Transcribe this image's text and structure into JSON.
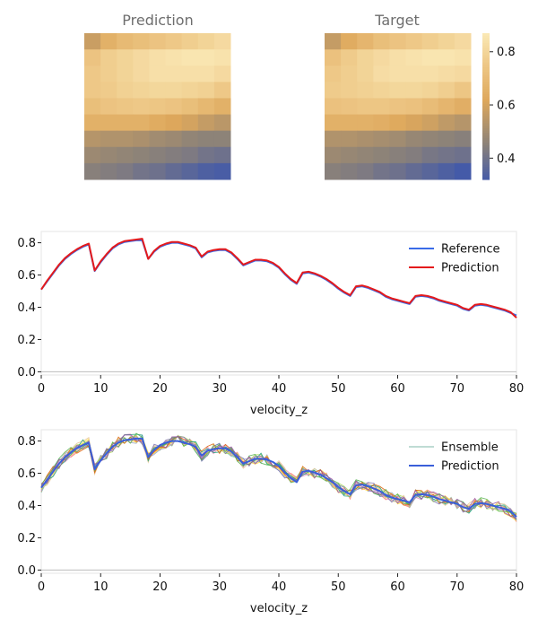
{
  "chart_data": [
    {
      "type": "heatmap",
      "title": "Prediction",
      "rows": 9,
      "cols": 9,
      "values": [
        [
          0.58,
          0.66,
          0.7,
          0.72,
          0.74,
          0.76,
          0.78,
          0.8,
          0.82
        ],
        [
          0.74,
          0.78,
          0.8,
          0.82,
          0.84,
          0.85,
          0.86,
          0.86,
          0.85
        ],
        [
          0.76,
          0.78,
          0.8,
          0.82,
          0.84,
          0.84,
          0.84,
          0.84,
          0.82
        ],
        [
          0.76,
          0.77,
          0.79,
          0.8,
          0.81,
          0.81,
          0.8,
          0.79,
          0.76
        ],
        [
          0.72,
          0.74,
          0.75,
          0.76,
          0.75,
          0.74,
          0.72,
          0.69,
          0.66
        ],
        [
          0.66,
          0.66,
          0.66,
          0.66,
          0.64,
          0.62,
          0.6,
          0.57,
          0.55
        ],
        [
          0.54,
          0.53,
          0.53,
          0.52,
          0.5,
          0.49,
          0.47,
          0.46,
          0.46
        ],
        [
          0.49,
          0.48,
          0.47,
          0.46,
          0.45,
          0.44,
          0.43,
          0.41,
          0.4
        ],
        [
          0.45,
          0.44,
          0.43,
          0.41,
          0.4,
          0.38,
          0.36,
          0.34,
          0.33
        ]
      ]
    },
    {
      "type": "heatmap",
      "title": "Target",
      "rows": 9,
      "cols": 9,
      "values": [
        [
          0.57,
          0.64,
          0.68,
          0.72,
          0.74,
          0.76,
          0.78,
          0.8,
          0.82
        ],
        [
          0.73,
          0.77,
          0.8,
          0.82,
          0.84,
          0.85,
          0.86,
          0.86,
          0.85
        ],
        [
          0.76,
          0.78,
          0.8,
          0.83,
          0.84,
          0.84,
          0.84,
          0.83,
          0.82
        ],
        [
          0.77,
          0.78,
          0.79,
          0.8,
          0.81,
          0.81,
          0.8,
          0.78,
          0.75
        ],
        [
          0.73,
          0.74,
          0.75,
          0.75,
          0.74,
          0.73,
          0.71,
          0.68,
          0.65
        ],
        [
          0.66,
          0.66,
          0.66,
          0.65,
          0.63,
          0.61,
          0.59,
          0.56,
          0.54
        ],
        [
          0.53,
          0.53,
          0.52,
          0.51,
          0.5,
          0.48,
          0.47,
          0.46,
          0.45
        ],
        [
          0.49,
          0.48,
          0.47,
          0.46,
          0.45,
          0.44,
          0.42,
          0.41,
          0.4
        ],
        [
          0.45,
          0.44,
          0.43,
          0.41,
          0.4,
          0.38,
          0.36,
          0.34,
          0.32
        ]
      ]
    },
    {
      "type": "colorbar",
      "range": [
        0.32,
        0.87
      ],
      "ticks": [
        "0.4",
        "0.6",
        "0.8"
      ],
      "tick_values": [
        0.4,
        0.6,
        0.8
      ]
    },
    {
      "type": "line",
      "xlabel": "",
      "xlim": [
        0,
        80
      ],
      "ylim": [
        -0.02,
        0.87
      ],
      "xticks": [
        0,
        10,
        20,
        30,
        40,
        50,
        60,
        70,
        80
      ],
      "yticks": [
        "0.0",
        "0.2",
        "0.4",
        "0.6",
        "0.8"
      ],
      "ytick_values": [
        0.0,
        0.2,
        0.4,
        0.6,
        0.8
      ],
      "legend_position": "top-right",
      "x": [
        0,
        1,
        2,
        3,
        4,
        5,
        6,
        7,
        8,
        9,
        10,
        11,
        12,
        13,
        14,
        15,
        16,
        17,
        18,
        19,
        20,
        21,
        22,
        23,
        24,
        25,
        26,
        27,
        28,
        29,
        30,
        31,
        32,
        33,
        34,
        35,
        36,
        37,
        38,
        39,
        40,
        41,
        42,
        43,
        44,
        45,
        46,
        47,
        48,
        49,
        50,
        51,
        52,
        53,
        54,
        55,
        56,
        57,
        58,
        59,
        60,
        61,
        62,
        63,
        64,
        65,
        66,
        67,
        68,
        69,
        70,
        71,
        72,
        73,
        74,
        75,
        76,
        77,
        78,
        79,
        80
      ],
      "series": [
        {
          "name": "Reference",
          "color": "#3a6be8",
          "width": 2,
          "values": [
            0.51,
            0.56,
            0.61,
            0.66,
            0.7,
            0.73,
            0.755,
            0.775,
            0.79,
            0.625,
            0.68,
            0.725,
            0.765,
            0.79,
            0.805,
            0.81,
            0.815,
            0.815,
            0.7,
            0.745,
            0.775,
            0.79,
            0.8,
            0.8,
            0.79,
            0.78,
            0.765,
            0.71,
            0.74,
            0.75,
            0.755,
            0.755,
            0.735,
            0.7,
            0.66,
            0.675,
            0.69,
            0.69,
            0.685,
            0.67,
            0.645,
            0.605,
            0.57,
            0.545,
            0.61,
            0.615,
            0.605,
            0.59,
            0.57,
            0.545,
            0.515,
            0.49,
            0.47,
            0.525,
            0.53,
            0.52,
            0.505,
            0.49,
            0.465,
            0.45,
            0.44,
            0.43,
            0.42,
            0.465,
            0.47,
            0.465,
            0.455,
            0.44,
            0.43,
            0.42,
            0.41,
            0.39,
            0.38,
            0.41,
            0.415,
            0.41,
            0.4,
            0.39,
            0.38,
            0.365,
            0.35
          ]
        },
        {
          "name": "Prediction",
          "color": "#e41a1c",
          "width": 2,
          "values": [
            0.51,
            0.565,
            0.615,
            0.665,
            0.705,
            0.735,
            0.76,
            0.78,
            0.795,
            0.628,
            0.685,
            0.73,
            0.77,
            0.795,
            0.81,
            0.815,
            0.82,
            0.825,
            0.7,
            0.75,
            0.78,
            0.795,
            0.805,
            0.805,
            0.795,
            0.785,
            0.77,
            0.715,
            0.745,
            0.755,
            0.76,
            0.76,
            0.74,
            0.705,
            0.665,
            0.68,
            0.695,
            0.695,
            0.69,
            0.675,
            0.65,
            0.61,
            0.575,
            0.55,
            0.615,
            0.62,
            0.61,
            0.595,
            0.575,
            0.55,
            0.52,
            0.495,
            0.475,
            0.53,
            0.535,
            0.525,
            0.51,
            0.495,
            0.47,
            0.455,
            0.445,
            0.435,
            0.425,
            0.47,
            0.475,
            0.47,
            0.46,
            0.445,
            0.435,
            0.425,
            0.415,
            0.395,
            0.385,
            0.415,
            0.42,
            0.415,
            0.405,
            0.395,
            0.385,
            0.37,
            0.335
          ]
        }
      ]
    },
    {
      "type": "line",
      "xlabel": "",
      "xlim": [
        0,
        80
      ],
      "ylim": [
        -0.02,
        0.87
      ],
      "xticks": [
        0,
        10,
        20,
        30,
        40,
        50,
        60,
        70,
        80
      ],
      "yticks": [
        "0.0",
        "0.2",
        "0.4",
        "0.6",
        "0.8"
      ],
      "ytick_values": [
        0.0,
        0.2,
        0.4,
        0.6,
        0.8
      ],
      "legend_position": "top-right",
      "x": [
        0,
        1,
        2,
        3,
        4,
        5,
        6,
        7,
        8,
        9,
        10,
        11,
        12,
        13,
        14,
        15,
        16,
        17,
        18,
        19,
        20,
        21,
        22,
        23,
        24,
        25,
        26,
        27,
        28,
        29,
        30,
        31,
        32,
        33,
        34,
        35,
        36,
        37,
        38,
        39,
        40,
        41,
        42,
        43,
        44,
        45,
        46,
        47,
        48,
        49,
        50,
        51,
        52,
        53,
        54,
        55,
        56,
        57,
        58,
        59,
        60,
        61,
        62,
        63,
        64,
        65,
        66,
        67,
        68,
        69,
        70,
        71,
        72,
        73,
        74,
        75,
        76,
        77,
        78,
        79,
        80
      ],
      "ensemble": {
        "name": "Ensemble",
        "colors": [
          "#66c2a5",
          "#fc8d62",
          "#8da0cb",
          "#e78ac3",
          "#a6d854",
          "#ffd92f",
          "#e5c494",
          "#1b9e77",
          "#d95f02",
          "#7570b3",
          "#4daf4a",
          "#984ea3"
        ],
        "perturb_amplitude": 0.035
      },
      "series": [
        {
          "name": "Prediction",
          "color": "#3a5fd9",
          "width": 2,
          "values": [
            0.51,
            0.56,
            0.61,
            0.66,
            0.7,
            0.73,
            0.755,
            0.775,
            0.79,
            0.625,
            0.68,
            0.725,
            0.765,
            0.79,
            0.805,
            0.81,
            0.815,
            0.815,
            0.7,
            0.745,
            0.775,
            0.79,
            0.8,
            0.8,
            0.79,
            0.78,
            0.765,
            0.71,
            0.74,
            0.75,
            0.755,
            0.755,
            0.735,
            0.7,
            0.66,
            0.675,
            0.69,
            0.69,
            0.685,
            0.67,
            0.645,
            0.605,
            0.57,
            0.545,
            0.61,
            0.615,
            0.605,
            0.59,
            0.57,
            0.545,
            0.515,
            0.49,
            0.47,
            0.525,
            0.53,
            0.52,
            0.505,
            0.49,
            0.465,
            0.45,
            0.44,
            0.43,
            0.42,
            0.465,
            0.47,
            0.465,
            0.455,
            0.44,
            0.43,
            0.42,
            0.41,
            0.39,
            0.38,
            0.41,
            0.415,
            0.41,
            0.4,
            0.39,
            0.38,
            0.365,
            0.33
          ]
        }
      ]
    }
  ],
  "labels": {
    "heatmap_pred_title": "Prediction",
    "heatmap_target_title": "Target",
    "line1_xlabel": "velocity_z",
    "line2_xlabel": "velocity_z",
    "legend1": [
      "Reference",
      "Prediction"
    ],
    "legend2": [
      "Ensemble",
      "Prediction"
    ]
  }
}
